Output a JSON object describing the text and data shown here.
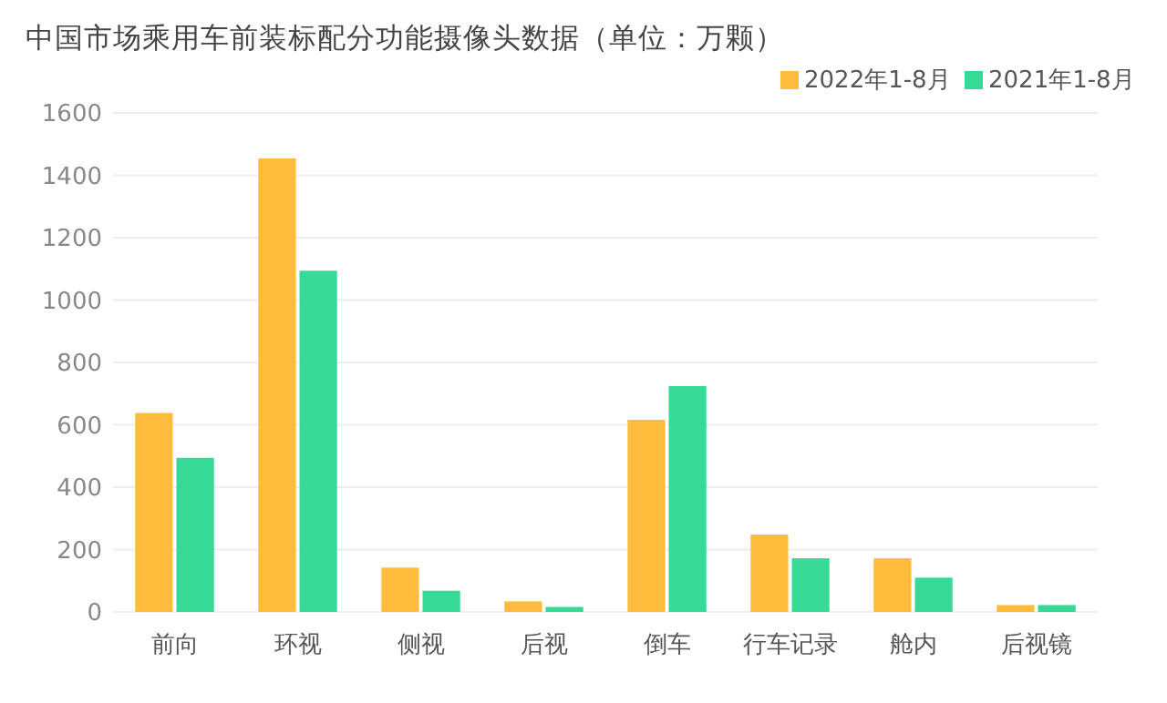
{
  "chart_data": {
    "type": "bar",
    "title": "中国市场乘用车前装标配分功能摄像头数据（单位：万颗）",
    "categories": [
      "前向",
      "环视",
      "侧视",
      "后视",
      "倒车",
      "行车记录",
      "舱内",
      "后视镜"
    ],
    "series": [
      {
        "name": "2022年1-8月",
        "color": "#ffbb3c",
        "values": [
          638,
          1454,
          142,
          34,
          616,
          248,
          172,
          22
        ]
      },
      {
        "name": "2021年1-8月",
        "color": "#36d995",
        "values": [
          494,
          1094,
          68,
          16,
          724,
          172,
          110,
          22
        ]
      }
    ],
    "ylim": [
      0,
      1600
    ],
    "yticks": [
      0,
      200,
      400,
      600,
      800,
      1000,
      1200,
      1400,
      1600
    ],
    "grid": "y",
    "legend": "top right"
  }
}
